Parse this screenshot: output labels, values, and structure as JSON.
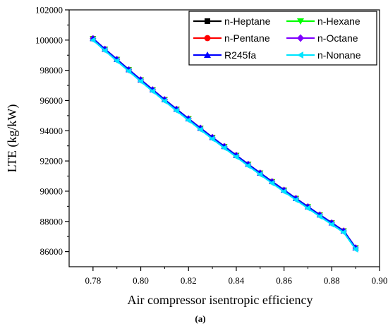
{
  "chart_data": {
    "type": "line",
    "xlabel": "Air compressor isentropic efficiency",
    "ylabel": "LTE (kg/kW)",
    "caption": "(a)",
    "xlim": [
      0.77,
      0.9
    ],
    "ylim": [
      85000,
      102000
    ],
    "xticks": [
      0.78,
      0.8,
      0.82,
      0.84,
      0.86,
      0.88,
      0.9
    ],
    "xtick_labels": [
      "0.78",
      "0.80",
      "0.82",
      "0.84",
      "0.86",
      "0.88",
      "0.90"
    ],
    "yticks": [
      86000,
      88000,
      90000,
      92000,
      94000,
      96000,
      98000,
      100000,
      102000
    ],
    "ytick_labels": [
      "86000",
      "88000",
      "90000",
      "92000",
      "94000",
      "96000",
      "98000",
      "100000",
      "102000"
    ],
    "legend_position": "top-right",
    "x": [
      0.78,
      0.785,
      0.79,
      0.795,
      0.8,
      0.805,
      0.81,
      0.815,
      0.82,
      0.825,
      0.83,
      0.835,
      0.84,
      0.845,
      0.85,
      0.855,
      0.86,
      0.865,
      0.87,
      0.875,
      0.88,
      0.885,
      0.89
    ],
    "series": [
      {
        "name": "n-Heptane",
        "color": "#000000",
        "marker": "square",
        "values": [
          100100,
          99400,
          98720,
          98040,
          97370,
          96710,
          96060,
          95420,
          94790,
          94170,
          93560,
          92960,
          92370,
          91780,
          91200,
          90630,
          90070,
          89520,
          88970,
          88430,
          87900,
          87370,
          86250
        ]
      },
      {
        "name": "n-Hexane",
        "color": "#00ff00",
        "marker": "triangle-down",
        "values": [
          100100,
          99400,
          98720,
          98040,
          97370,
          96710,
          96060,
          95420,
          94790,
          94170,
          93560,
          92960,
          92370,
          91780,
          91200,
          90630,
          90070,
          89520,
          88970,
          88430,
          87900,
          87370,
          86250
        ]
      },
      {
        "name": "n-Pentane",
        "color": "#ff0000",
        "marker": "circle",
        "values": [
          100100,
          99400,
          98720,
          98040,
          97370,
          96710,
          96060,
          95420,
          94790,
          94170,
          93560,
          92960,
          92370,
          91780,
          91200,
          90630,
          90070,
          89520,
          88970,
          88430,
          87900,
          87370,
          86250
        ]
      },
      {
        "name": "n-Octane",
        "color": "#8000ff",
        "marker": "diamond",
        "values": [
          100100,
          99400,
          98720,
          98040,
          97370,
          96710,
          96060,
          95420,
          94790,
          94170,
          93560,
          92960,
          92370,
          91780,
          91200,
          90630,
          90070,
          89520,
          88970,
          88430,
          87900,
          87370,
          86250
        ]
      },
      {
        "name": "R245fa",
        "color": "#0000ff",
        "marker": "triangle-up",
        "values": [
          100100,
          99400,
          98720,
          98040,
          97370,
          96710,
          96060,
          95420,
          94790,
          94170,
          93560,
          92960,
          92370,
          91780,
          91200,
          90630,
          90070,
          89520,
          88970,
          88430,
          87900,
          87370,
          86250
        ]
      },
      {
        "name": "n-Nonane",
        "color": "#00e5ff",
        "marker": "triangle-left",
        "values": [
          100000,
          99300,
          98620,
          97940,
          97270,
          96610,
          95960,
          95320,
          94690,
          94070,
          93460,
          92860,
          92270,
          91680,
          91100,
          90530,
          89970,
          89420,
          88870,
          88330,
          87800,
          87270,
          86150
        ]
      }
    ]
  }
}
